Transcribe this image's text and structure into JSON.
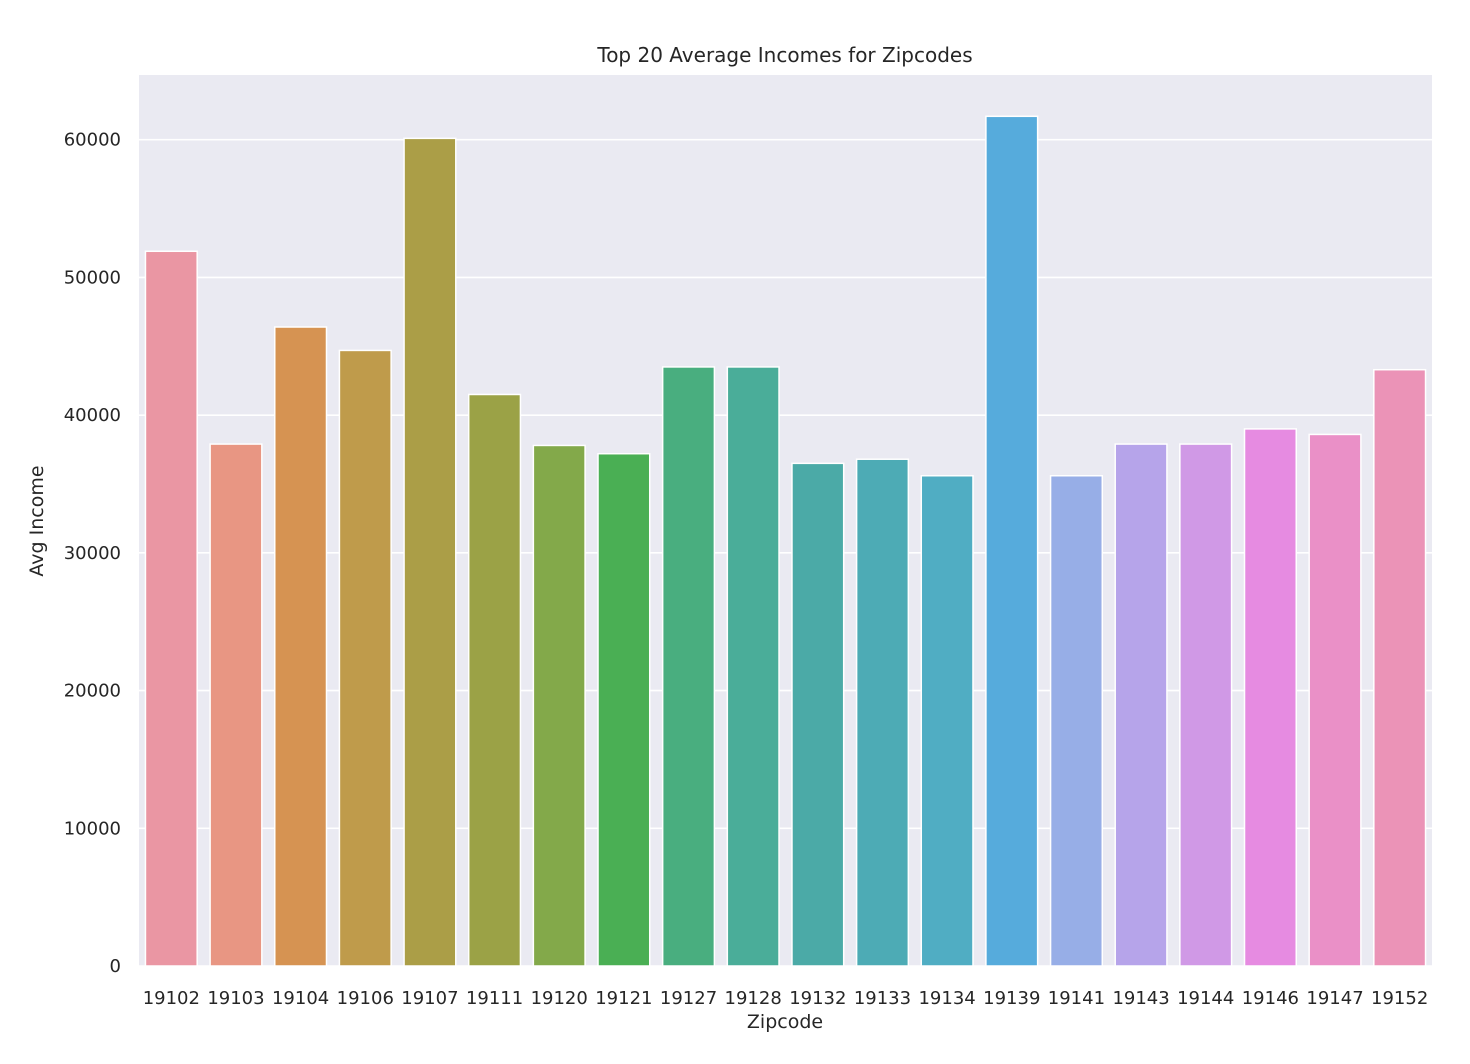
{
  "chart_data": {
    "type": "bar",
    "title": "Top 20 Average Incomes for Zipcodes",
    "xlabel": "Zipcode",
    "ylabel": "Avg Income",
    "ylim": [
      0,
      64700
    ],
    "yticks": [
      0,
      10000,
      20000,
      30000,
      40000,
      50000,
      60000
    ],
    "grid": true,
    "legend": "none",
    "background_color": "#eaeaf2",
    "grid_color": "#ffffff",
    "categories": [
      "19102",
      "19103",
      "19104",
      "19106",
      "19107",
      "19111",
      "19120",
      "19121",
      "19127",
      "19128",
      "19132",
      "19133",
      "19134",
      "19139",
      "19141",
      "19143",
      "19144",
      "19146",
      "19147",
      "19152"
    ],
    "values": [
      51900,
      37900,
      46400,
      44700,
      60100,
      41500,
      37800,
      37200,
      43500,
      43500,
      36500,
      36800,
      35600,
      61700,
      35600,
      37900,
      37900,
      39000,
      38600,
      43300
    ],
    "colors": [
      "#ea96a3",
      "#e89683",
      "#d69352",
      "#bf9b4b",
      "#ab9e47",
      "#9ba246",
      "#83a94a",
      "#4aaf54",
      "#49ae7f",
      "#4aad99",
      "#4baaa7",
      "#4dabb5",
      "#50adc3",
      "#56abdc",
      "#97aee7",
      "#b6a4ea",
      "#d099e6",
      "#e68be1",
      "#ea90c7",
      "#eb93b7"
    ]
  }
}
